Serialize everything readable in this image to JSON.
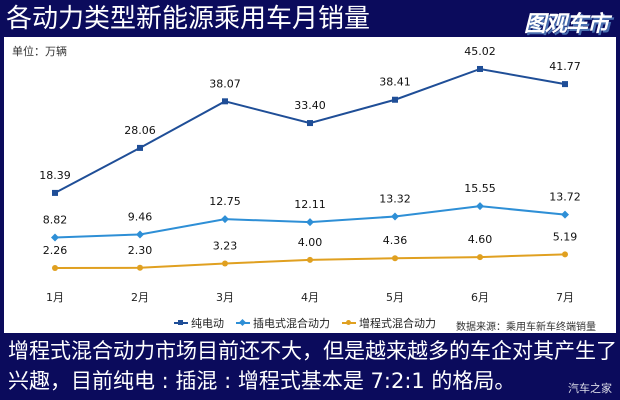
{
  "title": "各动力类型新能源乘用车月销量",
  "logo": "图观车市",
  "unit": "单位：万辆",
  "source": "数据来源：乘用车新车终端销量",
  "caption": "增程式混合动力市场目前还不大，但是越来越多的车企对其产生了兴趣，目前纯电 : 插混 : 增程式基本是 7:2:1 的格局。",
  "watermark": "汽车之家",
  "chart_data": {
    "type": "line",
    "categories": [
      "1月",
      "2月",
      "3月",
      "4月",
      "5月",
      "6月",
      "7月"
    ],
    "series": [
      {
        "name": "纯电动",
        "values": [
          18.39,
          28.06,
          38.07,
          33.4,
          38.41,
          45.02,
          41.77
        ],
        "labels": [
          "18.39",
          "28.06",
          "38.07",
          "33.40",
          "38.41",
          "45.02",
          "41.77"
        ],
        "color": "#1f4e97",
        "marker": "square"
      },
      {
        "name": "插电式混合动力",
        "values": [
          8.82,
          9.46,
          12.75,
          12.11,
          13.32,
          15.55,
          13.72
        ],
        "labels": [
          "8.82",
          "9.46",
          "12.75",
          "12.11",
          "13.32",
          "15.55",
          "13.72"
        ],
        "color": "#2e8fd6",
        "marker": "diamond"
      },
      {
        "name": "增程式混合动力",
        "values": [
          2.26,
          2.3,
          3.23,
          4.0,
          4.36,
          4.6,
          5.19
        ],
        "labels": [
          "2.26",
          "2.30",
          "3.23",
          "4.00",
          "4.36",
          "4.60",
          "5.19"
        ],
        "color": "#e0a020",
        "marker": "circle"
      }
    ],
    "legend": "bottom",
    "grid": false
  }
}
